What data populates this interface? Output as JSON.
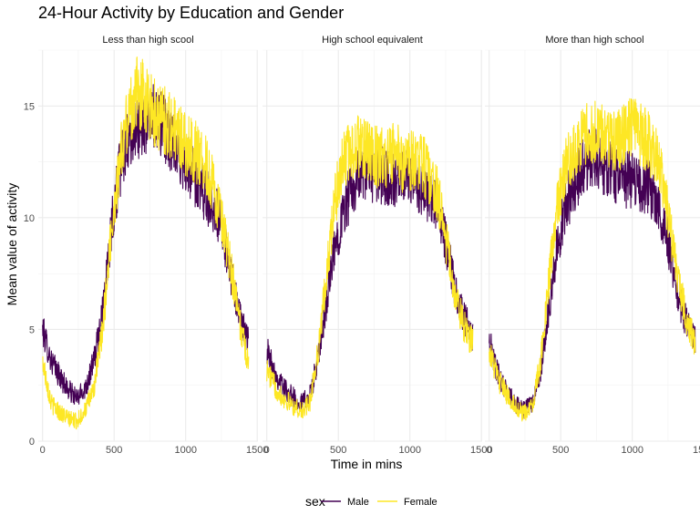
{
  "chart_data": {
    "type": "line",
    "title": "24-Hour Activity by Education and Gender",
    "xlabel": "Time in mins",
    "ylabel": "Mean value of activity",
    "xlim": [
      0,
      1440
    ],
    "ylim": [
      0,
      17.5
    ],
    "x_ticks": [
      0,
      500,
      1000,
      1500
    ],
    "y_ticks": [
      0,
      5,
      10,
      15
    ],
    "grid": true,
    "legend": {
      "title": "sex",
      "position": "bottom",
      "entries": [
        "Male",
        "Female"
      ]
    },
    "colors": {
      "Male": "#440154",
      "Female": "#FDE725"
    },
    "panels": [
      {
        "label": "Less than high scool",
        "series": [
          {
            "name": "Male",
            "x": [
              0,
              60,
              120,
              180,
              240,
              300,
              360,
              420,
              480,
              540,
              600,
              660,
              720,
              780,
              840,
              900,
              960,
              1020,
              1080,
              1140,
              1200,
              1260,
              1320,
              1380,
              1440
            ],
            "values": [
              5.0,
              3.6,
              2.9,
              2.3,
              1.9,
              2.4,
              3.6,
              5.8,
              9.6,
              12.2,
              13.4,
              14.0,
              14.3,
              14.6,
              14.1,
              13.4,
              12.8,
              12.3,
              11.6,
              11.0,
              10.5,
              9.4,
              7.3,
              5.5,
              4.4
            ]
          },
          {
            "name": "Female",
            "x": [
              0,
              60,
              120,
              180,
              240,
              300,
              360,
              420,
              480,
              540,
              600,
              660,
              720,
              780,
              840,
              900,
              960,
              1020,
              1080,
              1140,
              1200,
              1260,
              1320,
              1380,
              1440
            ],
            "values": [
              3.6,
              1.7,
              1.3,
              1.0,
              0.9,
              1.4,
              2.4,
              5.0,
              9.4,
              12.6,
              14.6,
              15.6,
              15.4,
              14.7,
              14.4,
              14.1,
              13.6,
              13.2,
              12.9,
              12.3,
              11.3,
              9.5,
              7.6,
              5.2,
              3.5
            ]
          }
        ]
      },
      {
        "label": "High school equivalent",
        "series": [
          {
            "name": "Male",
            "x": [
              0,
              60,
              120,
              180,
              240,
              300,
              360,
              420,
              480,
              540,
              600,
              660,
              720,
              780,
              840,
              900,
              960,
              1020,
              1080,
              1140,
              1200,
              1260,
              1320,
              1380,
              1440
            ],
            "values": [
              4.1,
              3.0,
              2.4,
              2.0,
              1.7,
              2.0,
              3.7,
              6.3,
              8.8,
              10.4,
              11.4,
              11.9,
              12.0,
              11.9,
              11.8,
              11.6,
              11.7,
              11.8,
              11.4,
              10.9,
              10.3,
              8.7,
              6.7,
              5.5,
              4.7
            ]
          },
          {
            "name": "Female",
            "x": [
              0,
              60,
              120,
              180,
              240,
              300,
              360,
              420,
              480,
              540,
              600,
              660,
              720,
              780,
              840,
              900,
              960,
              1020,
              1080,
              1140,
              1200,
              1260,
              1320,
              1380,
              1440
            ],
            "values": [
              3.2,
              2.4,
              1.9,
              1.6,
              1.3,
              1.7,
              4.1,
              7.6,
              10.9,
              12.6,
              13.1,
              13.2,
              12.8,
              12.7,
              12.6,
              12.9,
              12.4,
              12.6,
              12.5,
              11.8,
              10.9,
              8.7,
              6.4,
              5.1,
              4.4
            ]
          }
        ]
      },
      {
        "label": "More than high school",
        "series": [
          {
            "name": "Male",
            "x": [
              0,
              60,
              120,
              180,
              240,
              300,
              360,
              420,
              480,
              540,
              600,
              660,
              720,
              780,
              840,
              900,
              960,
              1020,
              1080,
              1140,
              1200,
              1260,
              1320,
              1380,
              1440
            ],
            "values": [
              4.5,
              3.0,
              2.2,
              1.7,
              1.4,
              1.6,
              3.2,
              6.1,
              8.9,
              10.6,
              11.6,
              12.3,
              12.8,
              12.5,
              12.2,
              11.9,
              11.7,
              11.8,
              11.4,
              11.2,
              10.3,
              8.6,
              6.5,
              5.3,
              4.5
            ]
          },
          {
            "name": "Female",
            "x": [
              0,
              60,
              120,
              180,
              240,
              300,
              360,
              420,
              480,
              540,
              600,
              660,
              720,
              780,
              840,
              900,
              960,
              1020,
              1080,
              1140,
              1200,
              1260,
              1320,
              1380,
              1440
            ],
            "values": [
              4.1,
              2.8,
              2.1,
              1.6,
              1.2,
              1.5,
              3.6,
              7.4,
              10.6,
              12.3,
              13.1,
              13.6,
              13.8,
              13.7,
              13.6,
              13.5,
              13.8,
              14.0,
              13.6,
              13.1,
              12.2,
              9.7,
              7.3,
              5.5,
              4.4
            ]
          }
        ]
      }
    ]
  }
}
